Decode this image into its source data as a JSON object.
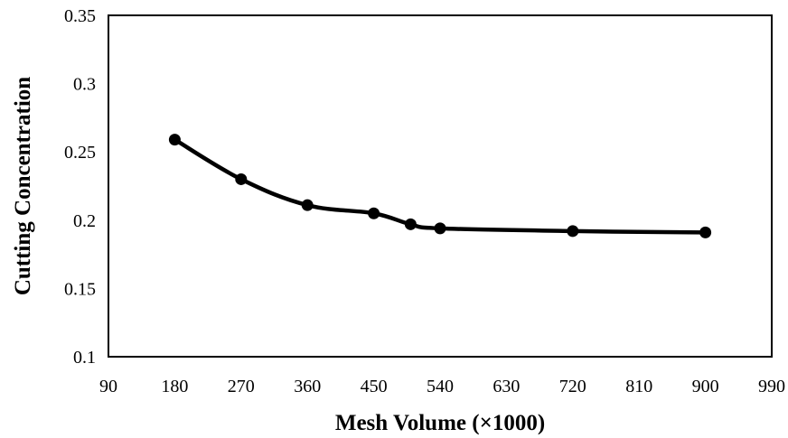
{
  "chart_data": {
    "type": "line",
    "title": "",
    "xlabel": "Mesh Volume (×1000)",
    "ylabel": "Cutting Concentration",
    "xlim": [
      90,
      990
    ],
    "ylim": [
      0.1,
      0.35
    ],
    "x_ticks": [
      "90",
      "180",
      "270",
      "360",
      "450",
      "540",
      "630",
      "720",
      "810",
      "900",
      "990"
    ],
    "y_ticks": [
      "0.1",
      "0.15",
      "0.2",
      "0.25",
      "0.3",
      "0.35"
    ],
    "grid": false,
    "legend": "none",
    "line_color": "#000000",
    "series": [
      {
        "x": [
          180,
          270,
          360,
          450,
          500,
          540,
          720,
          900
        ],
        "y": [
          0.259,
          0.23,
          0.211,
          0.205,
          0.197,
          0.194,
          0.192,
          0.191
        ]
      }
    ]
  }
}
